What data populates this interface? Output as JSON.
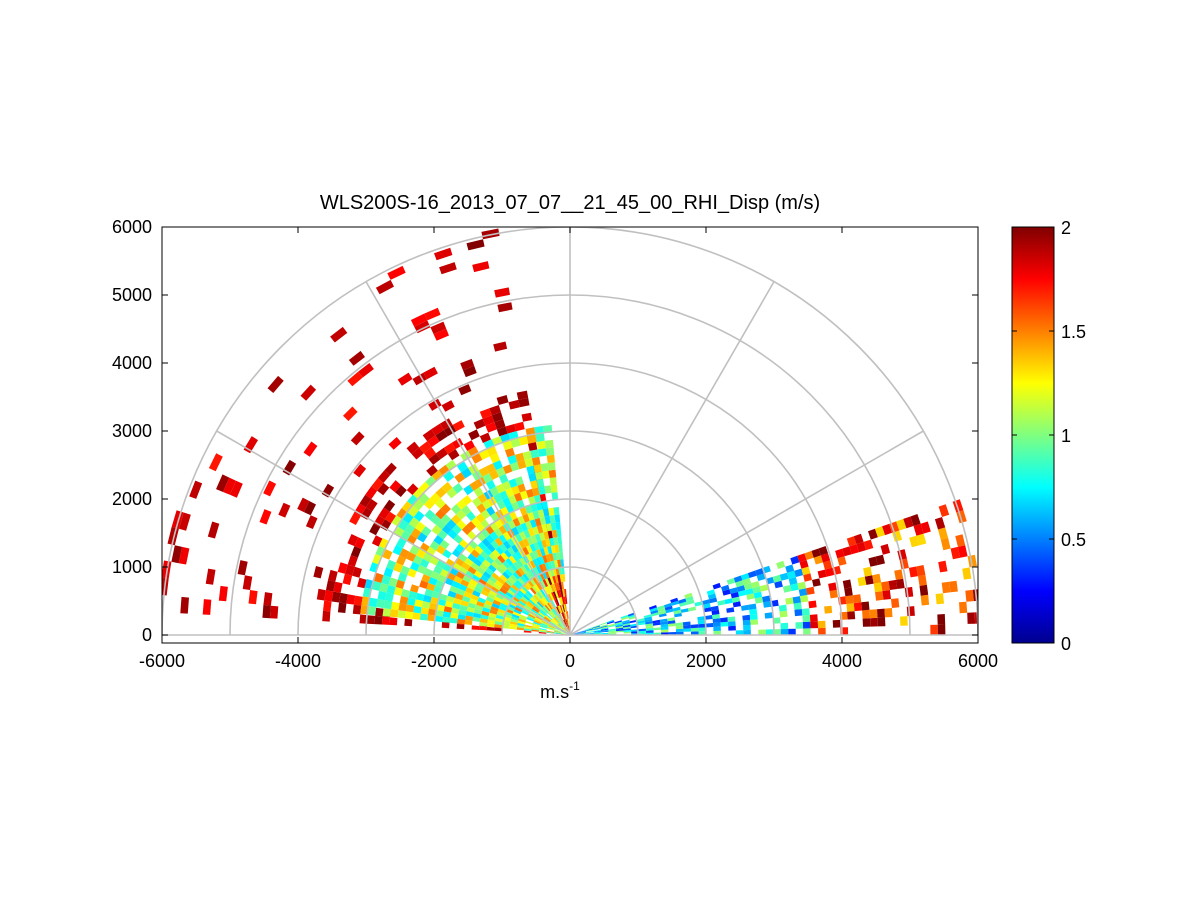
{
  "chart_data": {
    "type": "heatmap",
    "projection": "polar-rhi",
    "title": "WLS200S-16_2013_07_07__21_45_00_RHI_Disp (m/s)",
    "xlabel_base": "m.s",
    "xlabel_sup": "-1",
    "ylabel": "",
    "xlim": [
      -6000,
      6000
    ],
    "ylim": [
      0,
      6000
    ],
    "xticks": [
      -6000,
      -4000,
      -2000,
      0,
      2000,
      4000,
      6000
    ],
    "yticks": [
      0,
      1000,
      2000,
      3000,
      4000,
      5000,
      6000
    ],
    "polar_grid": {
      "ranges": [
        1000,
        2000,
        3000,
        4000,
        5000,
        6000
      ],
      "angles_deg": [
        0,
        30,
        60,
        90,
        120,
        150,
        180
      ]
    },
    "colorbar": {
      "colormap": "jet",
      "range": [
        0,
        2
      ],
      "ticks": [
        0,
        0.5,
        1,
        1.5,
        2
      ]
    },
    "sectors": [
      {
        "name": "left-high",
        "az_deg": [
          100,
          175
        ],
        "range_m": [
          0,
          6000
        ],
        "typical_value": 2.0
      },
      {
        "name": "left-core",
        "az_deg": [
          95,
          172
        ],
        "range_m": [
          0,
          3000
        ],
        "typical_value": 1.1
      },
      {
        "name": "right-low",
        "az_deg": [
          0,
          18
        ],
        "range_m": [
          0,
          6000
        ],
        "typical_value": 0.7
      }
    ]
  }
}
